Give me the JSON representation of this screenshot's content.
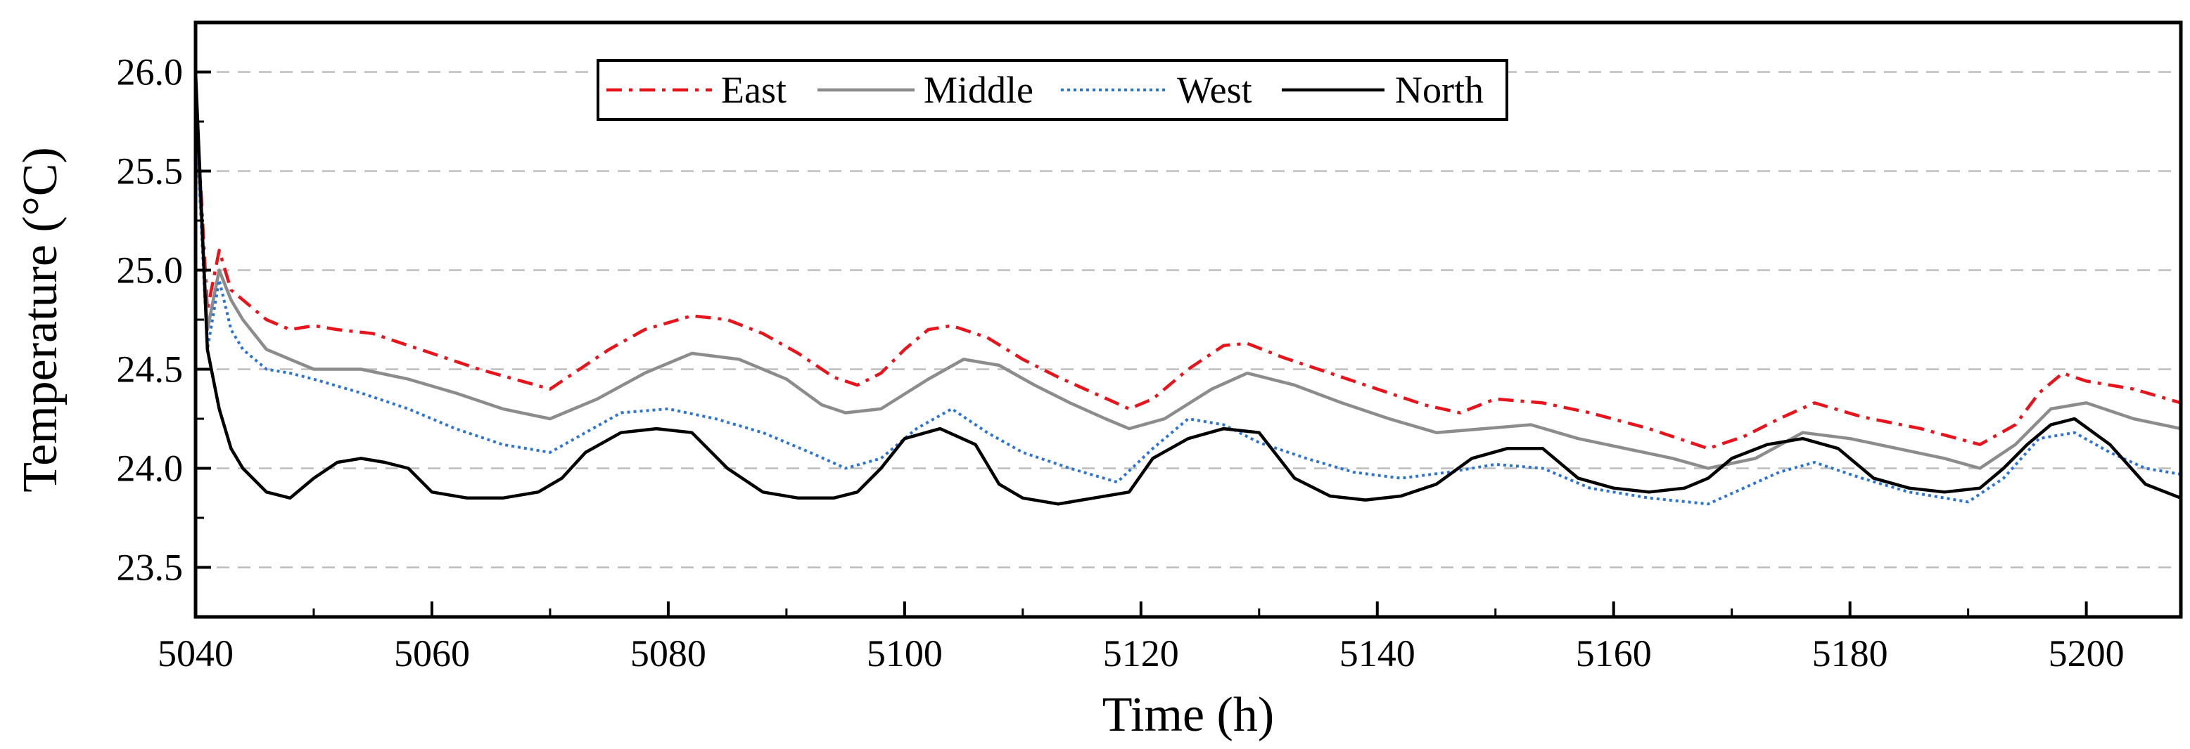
{
  "chart_data": {
    "type": "line",
    "title": "",
    "xlabel": "Time (h)",
    "ylabel": "Temperature (°C)",
    "xlim": [
      5040,
      5208
    ],
    "ylim": [
      23.25,
      26.25
    ],
    "xticks": [
      5040,
      5060,
      5080,
      5100,
      5120,
      5140,
      5160,
      5180,
      5200
    ],
    "xtick_labels": [
      "5040",
      "5060",
      "5080",
      "5100",
      "5120",
      "5140",
      "5160",
      "5180",
      "5200"
    ],
    "yticks": [
      23.5,
      24.0,
      24.5,
      25.0,
      25.5,
      26.0
    ],
    "ytick_labels": [
      "23.5",
      "24.0",
      "24.5",
      "25.0",
      "25.5",
      "26.0"
    ],
    "grid": "horizontal dashed",
    "legend_position": "top",
    "series": [
      {
        "name": "East",
        "color": "#e8141b",
        "dash": "dashdot",
        "x": [
          5040,
          5041,
          5042,
          5043,
          5044,
          5046,
          5048,
          5050,
          5052,
          5055,
          5058,
          5060,
          5064,
          5067,
          5070,
          5072,
          5075,
          5078,
          5082,
          5085,
          5088,
          5091,
          5094,
          5096,
          5098,
          5100,
          5102,
          5104,
          5107,
          5110,
          5113,
          5116,
          5119,
          5121,
          5124,
          5127,
          5129,
          5132,
          5136,
          5140,
          5144,
          5147,
          5150,
          5154,
          5158,
          5163,
          5168,
          5171,
          5174,
          5177,
          5181,
          5186,
          5191,
          5194,
          5196,
          5198,
          5200,
          5204,
          5208
        ],
        "y": [
          25.9,
          24.8,
          25.1,
          24.9,
          24.85,
          24.75,
          24.7,
          24.72,
          24.7,
          24.68,
          24.62,
          24.58,
          24.5,
          24.45,
          24.4,
          24.48,
          24.6,
          24.7,
          24.77,
          24.75,
          24.68,
          24.58,
          24.46,
          24.42,
          24.48,
          24.6,
          24.7,
          24.72,
          24.66,
          24.55,
          24.46,
          24.38,
          24.3,
          24.35,
          24.5,
          24.62,
          24.63,
          24.56,
          24.48,
          24.4,
          24.32,
          24.28,
          24.35,
          24.33,
          24.28,
          24.2,
          24.1,
          24.16,
          24.25,
          24.33,
          24.26,
          24.2,
          24.12,
          24.22,
          24.38,
          24.48,
          24.44,
          24.4,
          24.33
        ]
      },
      {
        "name": "Middle",
        "color": "#8c8c8c",
        "dash": "solid",
        "x": [
          5040,
          5041,
          5042,
          5043,
          5044,
          5046,
          5048,
          5050,
          5054,
          5058,
          5062,
          5066,
          5070,
          5074,
          5078,
          5082,
          5086,
          5090,
          5093,
          5095,
          5098,
          5102,
          5105,
          5108,
          5111,
          5114,
          5117,
          5119,
          5122,
          5126,
          5129,
          5133,
          5137,
          5141,
          5145,
          5149,
          5153,
          5157,
          5161,
          5165,
          5168,
          5172,
          5176,
          5180,
          5184,
          5188,
          5191,
          5194,
          5197,
          5200,
          5204,
          5208
        ],
        "y": [
          25.8,
          24.7,
          25.0,
          24.85,
          24.75,
          24.6,
          24.55,
          24.5,
          24.5,
          24.45,
          24.38,
          24.3,
          24.25,
          24.35,
          24.48,
          24.58,
          24.55,
          24.45,
          24.32,
          24.28,
          24.3,
          24.45,
          24.55,
          24.52,
          24.42,
          24.33,
          24.25,
          24.2,
          24.25,
          24.4,
          24.48,
          24.42,
          24.33,
          24.25,
          24.18,
          24.2,
          24.22,
          24.15,
          24.1,
          24.05,
          24.0,
          24.05,
          24.18,
          24.15,
          24.1,
          24.05,
          24.0,
          24.12,
          24.3,
          24.33,
          24.25,
          24.2
        ]
      },
      {
        "name": "West",
        "color": "#2b74d6",
        "dash": "dotted",
        "x": [
          5040,
          5041,
          5042,
          5043,
          5044,
          5046,
          5048,
          5050,
          5054,
          5058,
          5062,
          5066,
          5070,
          5073,
          5076,
          5080,
          5084,
          5088,
          5092,
          5095,
          5098,
          5101,
          5104,
          5107,
          5110,
          5114,
          5118,
          5121,
          5124,
          5127,
          5130,
          5134,
          5138,
          5142,
          5146,
          5150,
          5154,
          5158,
          5163,
          5168,
          5171,
          5174,
          5177,
          5181,
          5185,
          5190,
          5193,
          5196,
          5199,
          5202,
          5205,
          5208
        ],
        "y": [
          25.8,
          24.6,
          24.95,
          24.7,
          24.6,
          24.5,
          24.48,
          24.45,
          24.38,
          24.3,
          24.2,
          24.12,
          24.08,
          24.18,
          24.28,
          24.3,
          24.25,
          24.18,
          24.08,
          24.0,
          24.05,
          24.2,
          24.3,
          24.18,
          24.08,
          24.0,
          23.93,
          24.1,
          24.25,
          24.22,
          24.13,
          24.05,
          23.98,
          23.95,
          23.98,
          24.02,
          24.0,
          23.9,
          23.85,
          23.82,
          23.9,
          23.98,
          24.03,
          23.95,
          23.88,
          23.83,
          23.95,
          24.15,
          24.18,
          24.08,
          24.0,
          23.97
        ]
      },
      {
        "name": "North",
        "color": "#000000",
        "dash": "solid",
        "x": [
          5040,
          5041,
          5042,
          5043,
          5044,
          5046,
          5048,
          5050,
          5052,
          5054,
          5056,
          5058,
          5060,
          5063,
          5066,
          5069,
          5071,
          5073,
          5076,
          5079,
          5082,
          5085,
          5088,
          5091,
          5094,
          5096,
          5098,
          5100,
          5103,
          5106,
          5108,
          5110,
          5113,
          5116,
          5119,
          5121,
          5124,
          5127,
          5130,
          5133,
          5136,
          5139,
          5142,
          5145,
          5148,
          5151,
          5154,
          5157,
          5160,
          5163,
          5166,
          5168,
          5170,
          5173,
          5176,
          5179,
          5182,
          5185,
          5188,
          5191,
          5193,
          5195,
          5197,
          5199,
          5202,
          5205,
          5208
        ],
        "y": [
          26.0,
          24.6,
          24.3,
          24.1,
          24.0,
          23.88,
          23.85,
          23.95,
          24.03,
          24.05,
          24.03,
          24.0,
          23.88,
          23.85,
          23.85,
          23.88,
          23.95,
          24.08,
          24.18,
          24.2,
          24.18,
          24.0,
          23.88,
          23.85,
          23.85,
          23.88,
          24.0,
          24.15,
          24.2,
          24.12,
          23.92,
          23.85,
          23.82,
          23.85,
          23.88,
          24.05,
          24.15,
          24.2,
          24.18,
          23.95,
          23.86,
          23.84,
          23.86,
          23.92,
          24.05,
          24.1,
          24.1,
          23.95,
          23.9,
          23.88,
          23.9,
          23.95,
          24.05,
          24.12,
          24.15,
          24.1,
          23.95,
          23.9,
          23.88,
          23.9,
          24.0,
          24.12,
          24.22,
          24.25,
          24.12,
          23.92,
          23.85
        ]
      }
    ]
  }
}
